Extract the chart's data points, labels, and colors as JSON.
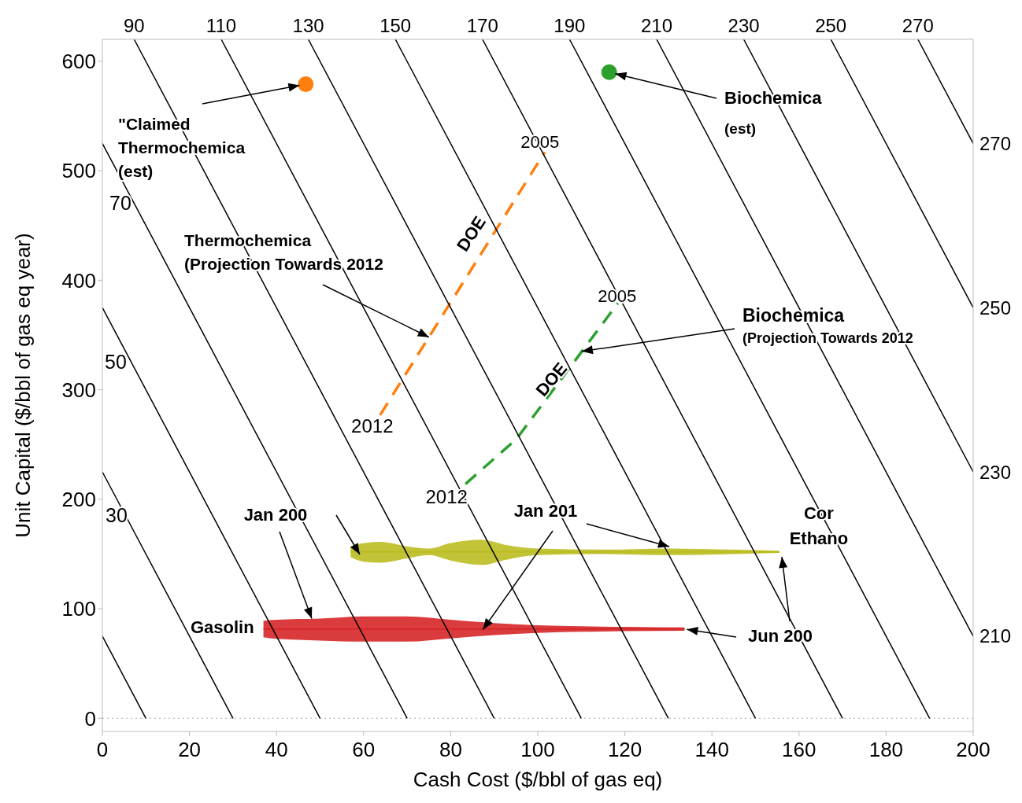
{
  "chart_data": {
    "type": "line",
    "xlabel": "Cash Cost ($/bbl of gas eq)",
    "ylabel": "Unit Capital ($/bbl of gas eq year)",
    "xlim": [
      0,
      200
    ],
    "xticks": [
      0,
      20,
      40,
      60,
      80,
      100,
      120,
      140,
      160,
      180,
      200
    ],
    "ylim": [
      -12,
      620
    ],
    "yticks": [
      0,
      100,
      200,
      300,
      400,
      500,
      600
    ],
    "x2lim": [
      82.7,
      282.7
    ],
    "x2ticks": [
      90,
      110,
      130,
      150,
      170,
      190,
      210,
      230,
      250,
      270
    ],
    "y2lim": [
      198.4,
      282.7
    ],
    "y2ticks": [
      210,
      230,
      250,
      270
    ],
    "ref_lines": [
      {
        "axis": "y",
        "value": 0,
        "line_style": "dotted",
        "color": "#aaaaaa"
      }
    ],
    "series": [
      {
        "type": "scatter",
        "color": "#ff7f0e",
        "marker": "circle",
        "x": [
          46.7
        ],
        "values": [
          579
        ]
      },
      {
        "type": "scatter",
        "color": "#2ca02c",
        "marker": "circle",
        "x": [
          116.4
        ],
        "values": [
          590
        ]
      },
      {
        "color": "#ff7f0e",
        "line_style": "dashed",
        "x": [
          63.8,
          101.6
        ],
        "values": [
          277,
          517
        ]
      },
      {
        "color": "#2ca02c",
        "line_style": "dashed",
        "x": [
          83.4,
          95.1,
          118.4
        ],
        "values": [
          214,
          255,
          379
        ]
      },
      {
        "name": "Gasolin",
        "color": "#d62728",
        "x": [
          37,
          40,
          50,
          60,
          70,
          80,
          90,
          100,
          110,
          120,
          133.7
        ],
        "values": [
          81.5,
          81.5,
          81.5,
          81.5,
          81.5,
          81.5,
          81.5,
          81.5,
          81.5,
          81.5,
          81.5
        ],
        "lower": [
          74,
          72.5,
          71,
          70,
          70,
          73,
          76,
          78,
          79,
          79.5,
          80
        ],
        "upper": [
          89,
          90,
          91,
          93,
          93,
          90,
          87,
          85,
          84,
          83.5,
          83
        ]
      },
      {
        "name": "Cor Ethano",
        "color": "#bcbd22",
        "x": [
          57,
          60,
          64,
          70,
          75,
          80,
          87,
          93,
          100,
          115,
          130,
          145,
          155.5
        ],
        "values": [
          152,
          152,
          152,
          152,
          152,
          152,
          152,
          152,
          152,
          152,
          152,
          152,
          152
        ],
        "lower": [
          147,
          143,
          142,
          146,
          149,
          144,
          140,
          145,
          149,
          150,
          149,
          150,
          151
        ],
        "upper": [
          157,
          160,
          161,
          157,
          155,
          160,
          163,
          158,
          155,
          154,
          155,
          154,
          153
        ]
      },
      {
        "type": "line",
        "color": "#000000",
        "line_style": "solid",
        "x": [
          0,
          10
        ],
        "values": [
          75,
          0
        ]
      },
      {
        "type": "line",
        "color": "#000000",
        "line_style": "solid",
        "x": [
          0,
          30
        ],
        "values": [
          225,
          0
        ]
      },
      {
        "type": "line",
        "color": "#000000",
        "line_style": "solid",
        "x": [
          0,
          50
        ],
        "values": [
          375,
          0
        ]
      },
      {
        "type": "line",
        "color": "#000000",
        "line_style": "solid",
        "x": [
          0,
          70
        ],
        "values": [
          525,
          0
        ]
      },
      {
        "type": "line",
        "color": "#000000",
        "line_style": "solid",
        "x": [
          7.3,
          90
        ],
        "values": [
          620,
          0
        ]
      },
      {
        "type": "line",
        "color": "#000000",
        "line_style": "solid",
        "x": [
          27.3,
          110
        ],
        "values": [
          620,
          0
        ]
      },
      {
        "type": "line",
        "color": "#000000",
        "line_style": "solid",
        "x": [
          47.3,
          130
        ],
        "values": [
          620,
          0
        ]
      },
      {
        "type": "line",
        "color": "#000000",
        "line_style": "solid",
        "x": [
          67.3,
          150
        ],
        "values": [
          620,
          0
        ]
      },
      {
        "type": "line",
        "color": "#000000",
        "line_style": "solid",
        "x": [
          87.3,
          170
        ],
        "values": [
          620,
          0
        ]
      },
      {
        "type": "line",
        "color": "#000000",
        "line_style": "solid",
        "x": [
          107.3,
          190
        ],
        "values": [
          620,
          0
        ]
      },
      {
        "type": "line",
        "color": "#000000",
        "line_style": "solid",
        "x": [
          127.3,
          200
        ],
        "values": [
          620,
          75
        ]
      },
      {
        "type": "line",
        "color": "#000000",
        "line_style": "solid",
        "x": [
          147.3,
          200
        ],
        "values": [
          620,
          225
        ]
      },
      {
        "type": "line",
        "color": "#000000",
        "line_style": "solid",
        "x": [
          167.3,
          200
        ],
        "values": [
          620,
          375
        ]
      },
      {
        "type": "line",
        "color": "#000000",
        "line_style": "solid",
        "x": [
          187.3,
          200
        ],
        "values": [
          620,
          525
        ]
      }
    ],
    "annotations": [
      {
        "text": "\"Claimed\nThermochemica\n(est)",
        "x": 46.7,
        "y": 579
      },
      {
        "text": "Biochemica\n(est)",
        "x": 116.4,
        "y": 590
      },
      {
        "text": "Thermochemica\n(Projection Towards 2012",
        "x": 75,
        "y": 348
      },
      {
        "text": "Biochemica\n(Projection Towards 2012",
        "x": 110.1,
        "y": 335
      },
      {
        "text": "Jan 200",
        "x": 48.1,
        "y": 91
      },
      {
        "text": "Jan 201",
        "x": 87.4,
        "y": 81
      },
      {
        "text": "Jun 200",
        "x": 133.7,
        "y": 81.5
      },
      "DOE",
      "DOE",
      {
        "text": "2005",
        "x": 101.6,
        "y": 517
      },
      {
        "text": "2012",
        "x": 63.8,
        "y": 277
      },
      {
        "text": "2005",
        "x": 118.4,
        "y": 379
      },
      {
        "text": "2012",
        "x": 83.4,
        "y": 214
      },
      "30",
      "50",
      "70"
    ]
  }
}
